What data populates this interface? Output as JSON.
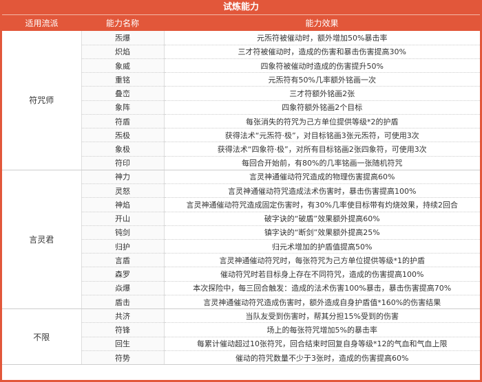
{
  "title": "试炼能力",
  "headers": [
    "适用流派",
    "能力名称",
    "能力效果"
  ],
  "accent": "#e2573a",
  "groups": [
    {
      "name": "符咒师",
      "rows": [
        [
          "炁爆",
          "元炁符被催动时，额外增加50%暴击率"
        ],
        [
          "炽焰",
          "三才符被催动时，造成的伤害和暴击伤害提高30%"
        ],
        [
          "象威",
          "四象符被催动时造成的伤害提升50%"
        ],
        [
          "重铭",
          "元炁符有50%几率额外铭画一次"
        ],
        [
          "叠峦",
          "三才符额外铭画2张"
        ],
        [
          "象阵",
          "四象符额外铭画2个目标"
        ],
        [
          "符盾",
          "每张消失的符咒为己方单位提供等级*2的护盾"
        ],
        [
          "炁极",
          "获得法术“元炁符·极”，对目标铭画3张元炁符，可使用3次"
        ],
        [
          "象极",
          "获得法术“四象符·极”，对所有目标铭画2张四象符，可使用3次"
        ],
        [
          "符印",
          "每回合开始前，有80%的几率铭画一张随机符咒"
        ]
      ]
    },
    {
      "name": "言灵君",
      "rows": [
        [
          "神力",
          "言灵神通催动符咒造成的物理伤害提高60%"
        ],
        [
          "灵怒",
          "言灵神通催动符咒造成法术伤害时，暴击伤害提高100%"
        ],
        [
          "神焰",
          "言灵神通催动符咒造成固定伤害时，有30%几率使目标带有灼烧效果，持续2回合"
        ],
        [
          "开山",
          "破字诀的“破盾”效果额外提高60%"
        ],
        [
          "钝剑",
          "镇字诀的“断剑”效果额外提高25%"
        ],
        [
          "归护",
          "归元术增加的护盾值提高50%"
        ],
        [
          "言盾",
          "言灵神通催动符咒时，每张符咒为己方单位提供等级*1的护盾"
        ],
        [
          "森罗",
          "催动符咒时若目标身上存在不同符咒，造成的伤害提高100%"
        ],
        [
          "焱爆",
          "本次探险中，每三回合触发：造成的法术伤害100%暴击，暴击伤害提高70%"
        ],
        [
          "盾击",
          "言灵神通催动符咒造成伤害时，额外造成自身护盾值*160%的伤害结果"
        ]
      ]
    },
    {
      "name": "不限",
      "rows": [
        [
          "共济",
          "当队友受到伤害时，帮其分担15%受到的伤害"
        ],
        [
          "符锋",
          "场上的每张符咒增加5%的暴击率"
        ],
        [
          "回生",
          "每累计催动超过10张符咒，回合结束时回复自身等级*12的气血和气血上限"
        ],
        [
          "符势",
          "催动的符咒数量不少于3张时，造成的伤害提高60%"
        ]
      ]
    }
  ]
}
